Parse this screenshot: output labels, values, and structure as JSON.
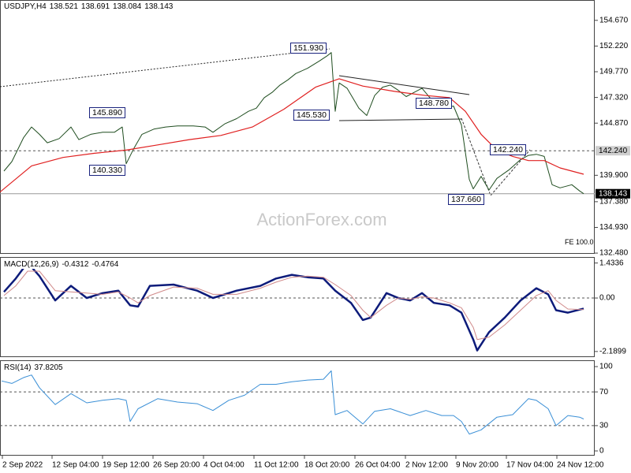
{
  "chart_data": [
    {
      "type": "line",
      "title": "USDJPY,H4",
      "quote": [
        138.521,
        138.691,
        138.084,
        138.143
      ],
      "xlim": [
        0,
        377
      ],
      "ylim": [
        132.41,
        156.61
      ],
      "yticks": [
        {
          "value": 154.67,
          "label": "154.670"
        },
        {
          "value": 152.22,
          "label": "152.220"
        },
        {
          "value": 149.77,
          "label": "149.770"
        },
        {
          "value": 147.32,
          "label": "147.320"
        },
        {
          "value": 144.87,
          "label": "144.870"
        },
        {
          "value": 139.9,
          "label": "139.900"
        },
        {
          "value": 137.38,
          "label": "137.380"
        },
        {
          "value": 134.93,
          "label": "134.930"
        },
        {
          "value": 132.48,
          "label": "132.480"
        }
      ],
      "levels": [
        {
          "value": 142.24,
          "label": "142.240"
        }
      ],
      "annotations": [
        "151.930",
        "145.890",
        "140.330",
        "145.530",
        "148.780",
        "142.240",
        "137.660",
        "FE 100.0"
      ],
      "watermark": "ActionForex.com",
      "series": [
        {
          "color": "#1f4d1f",
          "width": 1,
          "x": [
            2.5,
            7.5,
            15,
            20,
            25,
            30,
            37.5,
            45,
            50,
            57.5,
            65,
            72.5,
            77.5,
            80,
            85,
            90,
            97.5,
            105,
            112.5,
            122.5,
            130,
            135,
            142.5,
            150,
            157.5,
            162.5,
            167.5,
            172.5,
            177.5,
            182.5,
            187.5,
            195,
            202.5,
            207.5,
            210,
            212.5,
            215,
            220,
            227.5,
            232.5,
            237.5,
            242.5,
            247.5,
            252.5,
            257.5,
            262.5,
            267.5,
            272.5,
            277.5,
            282.5,
            287.5,
            292.5,
            297.5,
            300,
            305,
            310,
            315,
            322.5,
            330,
            335,
            340,
            345,
            350,
            355,
            362.5,
            367.5,
            370
          ],
          "values": [
            140.3,
            141.2,
            143.5,
            144.5,
            143.8,
            143.0,
            143.4,
            144.5,
            143.3,
            143.8,
            144.0,
            144.0,
            144.5,
            141.0,
            142.5,
            143.8,
            144.3,
            144.5,
            144.6,
            144.6,
            144.5,
            144.0,
            144.8,
            145.3,
            146.0,
            146.3,
            147.3,
            147.8,
            148.5,
            149.0,
            149.6,
            150.1,
            150.8,
            151.3,
            151.6,
            146.0,
            148.7,
            148.2,
            146.3,
            145.6,
            147.5,
            148.3,
            148.5,
            148.0,
            147.4,
            147.8,
            148.2,
            147.3,
            146.8,
            146.3,
            146.5,
            144.7,
            139.5,
            138.6,
            139.8,
            138.5,
            139.6,
            140.4,
            141.4,
            141.8,
            141.9,
            141.7,
            139.0,
            138.7,
            139.0,
            138.4,
            138.143
          ]
        },
        {
          "color": "#e02020",
          "width": 1.2,
          "x": [
            0,
            20,
            40,
            60,
            80,
            100,
            120,
            140,
            160,
            180,
            200,
            215,
            230,
            250,
            270,
            285,
            295,
            305,
            315,
            325,
            335,
            345,
            355,
            370
          ],
          "values": [
            138.3,
            140.8,
            141.6,
            142.0,
            142.3,
            142.8,
            143.3,
            143.7,
            144.5,
            146.2,
            148.3,
            149.1,
            148.4,
            147.9,
            147.5,
            147.3,
            146.0,
            143.8,
            142.3,
            141.7,
            141.3,
            141.3,
            140.6,
            140.0
          ]
        }
      ]
    },
    {
      "type": "line",
      "title": "MACD(12,26,9)",
      "macd_last": -0.4312,
      "signal_last": -0.4764,
      "xlim": [
        0,
        377
      ],
      "ylim": [
        -2.42,
        1.68
      ],
      "yticks": [
        1.4336,
        {
          "value": 0,
          "label": "0.00"
        },
        -2.1899
      ],
      "levels": [
        0
      ],
      "series": [
        {
          "color": "#0d1b7a",
          "width": 2.5,
          "x": [
            2.5,
            10,
            17.5,
            25,
            35,
            45,
            55,
            65,
            75,
            82.5,
            87.5,
            95,
            110,
            125,
            135,
            150,
            165,
            175,
            185,
            195,
            205,
            212.5,
            222.5,
            230,
            235,
            245,
            252.5,
            260,
            267.5,
            275,
            285,
            292.5,
            300,
            302.5,
            310,
            320,
            330,
            340,
            347.5,
            352.5,
            360,
            370
          ],
          "values": [
            0.25,
            0.8,
            1.45,
            0.9,
            -0.1,
            0.5,
            0.0,
            0.2,
            0.3,
            -0.3,
            -0.35,
            0.5,
            0.55,
            0.3,
            0.0,
            0.3,
            0.5,
            0.8,
            0.95,
            0.85,
            0.8,
            0.3,
            -0.2,
            -0.9,
            -0.8,
            0.2,
            0.0,
            -0.1,
            0.2,
            -0.2,
            -0.3,
            -0.6,
            -1.7,
            -2.15,
            -1.4,
            -0.8,
            -0.1,
            0.4,
            0.15,
            -0.5,
            -0.6,
            -0.4312
          ]
        },
        {
          "color": "#d08a8a",
          "width": 1,
          "x": [
            2.5,
            10,
            17.5,
            25,
            35,
            45,
            55,
            65,
            75,
            82.5,
            87.5,
            95,
            110,
            125,
            135,
            150,
            165,
            175,
            185,
            195,
            205,
            212.5,
            222.5,
            230,
            235,
            245,
            252.5,
            260,
            267.5,
            275,
            285,
            292.5,
            300,
            302.5,
            310,
            320,
            330,
            340,
            347.5,
            352.5,
            360,
            370
          ],
          "values": [
            0.1,
            0.5,
            1.1,
            1.1,
            0.3,
            0.25,
            0.2,
            0.15,
            0.25,
            0.0,
            -0.2,
            0.1,
            0.45,
            0.4,
            0.15,
            0.15,
            0.4,
            0.65,
            0.85,
            0.9,
            0.85,
            0.55,
            0.1,
            -0.5,
            -0.8,
            -0.3,
            0.0,
            -0.05,
            0.05,
            0.0,
            -0.2,
            -0.4,
            -1.2,
            -1.7,
            -1.6,
            -1.1,
            -0.5,
            0.1,
            0.3,
            -0.1,
            -0.45,
            -0.4764
          ]
        }
      ]
    },
    {
      "type": "line",
      "title": "RSI(14)",
      "rsi_last": 37.8205,
      "xlim": [
        0,
        377
      ],
      "ylim": [
        -5.6,
        107.5
      ],
      "yticks": [
        100,
        70,
        30,
        0
      ],
      "levels": [
        70,
        30
      ],
      "xticks": [
        {
          "value": 1.5,
          "label": "2 Sep 2022"
        },
        {
          "value": 33,
          "label": "12 Sep 04:00"
        },
        {
          "value": 65,
          "label": "19 Sep 12:00"
        },
        {
          "value": 97,
          "label": "26 Sep 20:00"
        },
        {
          "value": 129,
          "label": "4 Oct 04:00"
        },
        {
          "value": 161,
          "label": "11 Oct 12:00"
        },
        {
          "value": 193,
          "label": "18 Oct 20:00"
        },
        {
          "value": 225,
          "label": "26 Oct 04:00"
        },
        {
          "value": 257,
          "label": "2 Nov 12:00"
        },
        {
          "value": 289,
          "label": "9 Nov 20:00"
        },
        {
          "value": 321,
          "label": "17 Nov 04:00"
        },
        {
          "value": 353,
          "label": "24 Nov 12:00"
        }
      ],
      "series": [
        {
          "color": "#3a8fd6",
          "width": 1,
          "x": [
            1,
            7.5,
            15,
            20,
            25,
            35,
            45,
            55,
            65,
            75,
            80,
            82.5,
            87.5,
            100,
            112.5,
            125,
            135,
            145,
            155,
            165,
            175,
            185,
            195,
            205,
            210,
            212.5,
            220,
            230,
            237.5,
            247.5,
            260,
            270,
            280,
            287.5,
            292.5,
            297.5,
            305,
            315,
            325,
            335,
            340,
            347.5,
            352.5,
            360,
            367.5,
            370
          ],
          "values": [
            83,
            80,
            87,
            90,
            75,
            55,
            68,
            57,
            60,
            62,
            60,
            35,
            50,
            62,
            58,
            56,
            48,
            60,
            66,
            79,
            79,
            82,
            84,
            85,
            95,
            43,
            48,
            32,
            47,
            50,
            42,
            48,
            42,
            42,
            35,
            20,
            25,
            40,
            43,
            62,
            60,
            50,
            30,
            42,
            40,
            37.8205
          ]
        }
      ]
    }
  ]
}
